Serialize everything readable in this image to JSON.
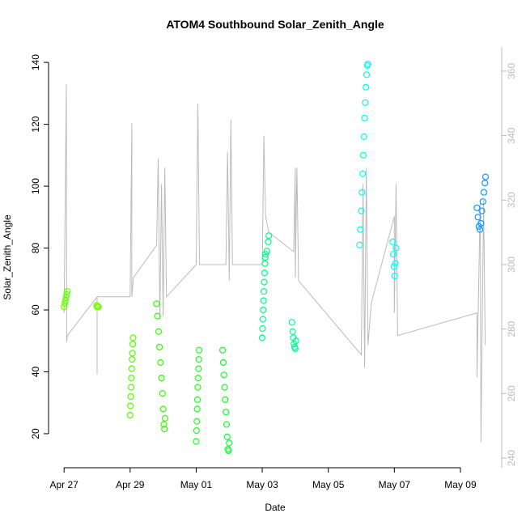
{
  "chart_data": {
    "type": "scatter",
    "title": "ATOM4 Southbound Solar_Zenith_Angle",
    "x_label": "Date",
    "y_label": "Solar_Zenith_Angle",
    "xlim": [
      -0.47,
      13.25
    ],
    "xticks": [
      {
        "value": 0,
        "label": "Apr 27"
      },
      {
        "value": 2,
        "label": "Apr 29"
      },
      {
        "value": 4,
        "label": "May 01"
      },
      {
        "value": 6,
        "label": "May 03"
      },
      {
        "value": 8,
        "label": "May 05"
      },
      {
        "value": 10,
        "label": "May 07"
      },
      {
        "value": 12,
        "label": "May 09"
      }
    ],
    "ylim": [
      9,
      145
    ],
    "yticks": [
      20,
      40,
      60,
      80,
      100,
      120,
      140
    ],
    "y2lim": [
      237,
      367.5
    ],
    "y2ticks": [
      240,
      260,
      280,
      300,
      320,
      340,
      360
    ],
    "y2_color": "#bbbbbb",
    "series": [
      {
        "type": "line",
        "axis": "y2",
        "color": "#bbbbbb",
        "x": [
          0.0,
          0.07,
          0.08,
          0.1,
          1.0,
          1.0,
          1.0,
          2.0,
          2.05,
          2.05,
          2.1,
          2.8,
          2.85,
          2.9,
          2.95,
          3.0,
          3.05,
          3.1,
          4.0,
          4.05,
          4.1,
          4.9,
          4.95,
          5.0,
          5.05,
          5.1,
          6.0,
          6.05,
          6.1,
          6.2,
          6.95,
          7.0,
          7.0,
          7.05,
          7.1,
          9.0,
          9.05,
          9.1,
          9.15,
          9.2,
          9.3,
          10.0,
          10.0,
          10.05,
          10.1,
          12.5,
          12.5,
          12.6,
          12.62,
          12.7,
          12.75
        ],
        "values": [
          285,
          356,
          276,
          278,
          290,
          266,
          290,
          290,
          344,
          290,
          296,
          306,
          333,
          283,
          325,
          284,
          330,
          290,
          300,
          350,
          300,
          300,
          335,
          295,
          345,
          300,
          300,
          340,
          315,
          310,
          304,
          330,
          296,
          330,
          295,
          272,
          325,
          268,
          330,
          275,
          288,
          315,
          285,
          325,
          278,
          285,
          265,
          320,
          245,
          320,
          275
        ]
      },
      {
        "color": "#66ff00",
        "x": [
          0.0,
          0.02,
          0.04,
          0.06,
          0.08,
          0.1
        ],
        "values": [
          61,
          62,
          63,
          64,
          65,
          66
        ]
      },
      {
        "color": "#77ff00",
        "x": [
          0.98,
          1.0,
          1.02,
          1.04
        ],
        "values": [
          61.5,
          61,
          61.2,
          61
        ]
      },
      {
        "color": "#55ff00",
        "x": [
          2.0,
          2.01,
          2.02,
          2.03,
          2.04,
          2.05,
          2.06,
          2.07,
          2.08,
          2.09
        ],
        "values": [
          26,
          29,
          32,
          35,
          38,
          41,
          44,
          46,
          49,
          51
        ]
      },
      {
        "color": "#33ff00",
        "x": [
          2.8,
          2.83,
          2.86,
          2.89,
          2.92,
          2.95,
          2.98,
          3.0,
          3.02,
          3.04,
          3.06
        ],
        "values": [
          62,
          58,
          53,
          48,
          43,
          38,
          33,
          28,
          23,
          21.5,
          25
        ]
      },
      {
        "color": "#22ff22",
        "x": [
          4.0,
          4.01,
          4.02,
          4.03,
          4.04,
          4.05,
          4.06,
          4.07,
          4.08,
          4.09
        ],
        "values": [
          17.5,
          21,
          24,
          28,
          31,
          35,
          38,
          41,
          44,
          47
        ]
      },
      {
        "color": "#11ff33",
        "x": [
          4.8,
          4.82,
          4.84,
          4.86,
          4.88,
          4.9,
          4.92,
          4.94,
          4.96,
          4.98,
          5.0
        ],
        "values": [
          47,
          43,
          39,
          35,
          31,
          27,
          23,
          19,
          15,
          14.5,
          17
        ]
      },
      {
        "color": "#00ff88",
        "x": [
          6.0,
          6.01,
          6.02,
          6.03,
          6.04,
          6.05,
          6.06,
          6.07,
          6.08,
          6.09,
          6.1,
          6.14,
          6.18,
          6.2
        ],
        "values": [
          51,
          54,
          57,
          60,
          63,
          66,
          69,
          72,
          75,
          77,
          78,
          79,
          82,
          84
        ]
      },
      {
        "color": "#00ff99",
        "x": [
          6.9,
          6.92,
          6.94,
          6.96,
          6.98,
          7.0,
          7.02
        ],
        "values": [
          56,
          53,
          51,
          49,
          48,
          47.5,
          50
        ]
      },
      {
        "color": "#00ffee",
        "x": [
          8.95,
          8.97,
          9.0,
          9.02,
          9.04,
          9.06,
          9.08,
          9.1,
          9.12,
          9.14,
          9.16,
          9.18,
          9.2
        ],
        "values": [
          81,
          86,
          92,
          98,
          104,
          110,
          116,
          122,
          127,
          132,
          136,
          139,
          139.5
        ]
      },
      {
        "color": "#00ffff",
        "x": [
          9.95,
          9.97,
          9.99,
          10.01,
          10.03,
          10.05
        ],
        "values": [
          82,
          78,
          74,
          71,
          75,
          80
        ]
      },
      {
        "color": "#1199ff",
        "x": [
          12.5,
          12.53,
          12.56,
          12.59,
          12.62,
          12.65,
          12.68,
          12.71,
          12.74,
          12.76
        ],
        "values": [
          93,
          90,
          87,
          86,
          88,
          92,
          95,
          98,
          101,
          103
        ]
      }
    ]
  }
}
